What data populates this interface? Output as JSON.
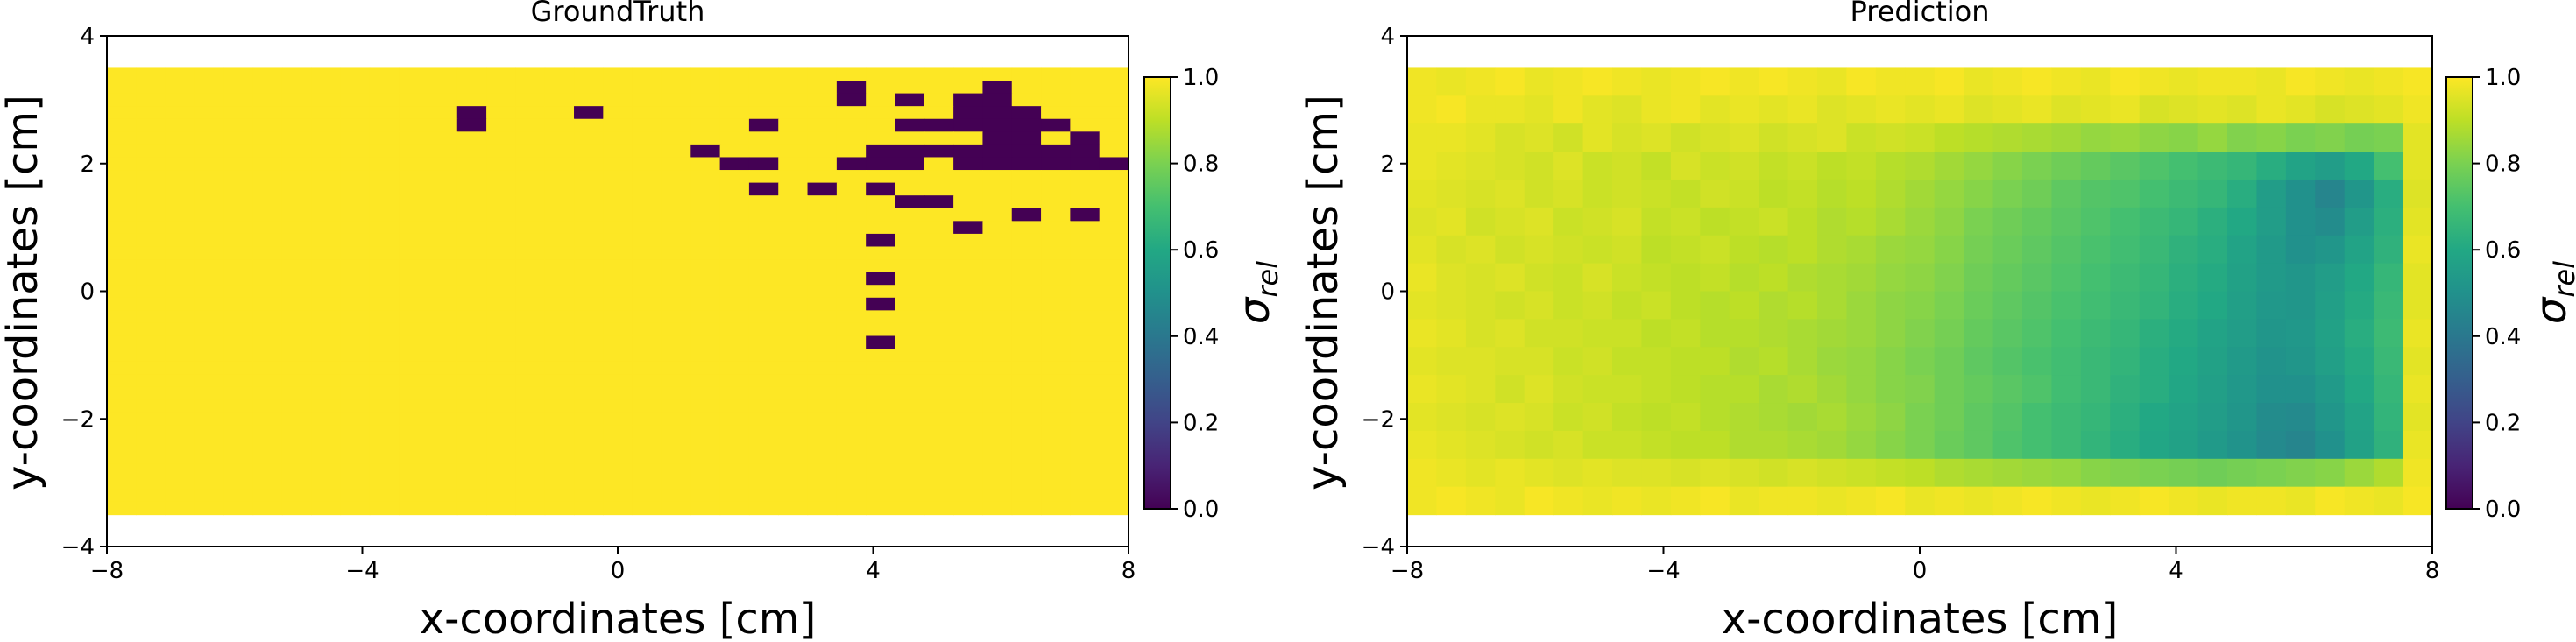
{
  "colors": {
    "viridis_low": "#440154",
    "viridis_high": "#fde725"
  },
  "chart_data": [
    {
      "type": "heatmap",
      "title": "GroundTruth",
      "xlabel": "x-coordinates [cm]",
      "ylabel": "y-coordinates [cm]",
      "xlim": [
        -8,
        8
      ],
      "ylim": [
        -4,
        4
      ],
      "xticks": [
        -8,
        -4,
        0,
        4,
        8
      ],
      "yticks": [
        -4,
        -2,
        0,
        2,
        4
      ],
      "xtick_labels": [
        "−8",
        "−4",
        "0",
        "4",
        "8"
      ],
      "ytick_labels": [
        "−4",
        "−2",
        "0",
        "2",
        "4"
      ],
      "colorbar": {
        "label": "σ",
        "label_sub": "rel",
        "range": [
          0.0,
          1.0
        ],
        "ticks": [
          0.0,
          0.2,
          0.4,
          0.6,
          0.8,
          1.0
        ],
        "tick_labels": [
          "0.0",
          "0.2",
          "0.4",
          "0.6",
          "0.8",
          "1.0"
        ],
        "colormap": "viridis"
      },
      "grid": {
        "x_min": -8.0,
        "x_max": 8.0,
        "y_min": -3.5,
        "y_max": 3.5,
        "row_order": "top-to-bottom"
      },
      "cells": [
        "11111111111111111111111111111111111",
        "11111111111111111111111110111101111",
        "11111111111111111111111110101001111",
        "11111111111101110111111111111000111",
        "11111111111101111111110111100000011",
        "11111111111111111111111111111100101",
        "11111111111111111111011111000000001",
        "11111111111111111111100110001000000",
        "11111111111111111111111111111111111",
        "11111111111111111111110101011111111",
        "11111111111111111111111111100111111",
        "11111111111111111111111111111110101",
        "11111111111111111111111111111011111",
        "11111111111111111111111111011111111",
        "11111111111111111111111111111111111",
        "11111111111111111111111111111111111",
        "11111111111111111111111111011111111",
        "11111111111111111111111111111111111",
        "11111111111111111111111111011111111",
        "11111111111111111111111111111111111",
        "11111111111111111111111111111111111",
        "11111111111111111111111111011111111",
        "11111111111111111111111111111111111",
        "11111111111111111111111111111111111",
        "11111111111111111111111111111111111",
        "11111111111111111111111111111111111",
        "11111111111111111111111111111111111",
        "11111111111111111111111111111111111",
        "11111111111111111111111111111111111",
        "11111111111111111111111111111111111",
        "11111111111111111111111111111111111",
        "11111111111111111111111111111111111",
        "11111111111111111111111111111111111",
        "11111111111111111111111111111111111",
        "11111111111111111111111111111111111"
      ]
    },
    {
      "type": "heatmap",
      "title": "Prediction",
      "xlabel": "x-coordinates [cm]",
      "ylabel": "y-coordinates [cm]",
      "xlim": [
        -8,
        8
      ],
      "ylim": [
        -4,
        4
      ],
      "xticks": [
        -8,
        -4,
        0,
        4,
        8
      ],
      "yticks": [
        -4,
        -2,
        0,
        2,
        4
      ],
      "xtick_labels": [
        "−8",
        "−4",
        "0",
        "4",
        "8"
      ],
      "ytick_labels": [
        "−4",
        "−2",
        "0",
        "2",
        "4"
      ],
      "colorbar": {
        "label": "σ",
        "label_sub": "rel",
        "range": [
          0.0,
          1.0
        ],
        "ticks": [
          0.0,
          0.2,
          0.4,
          0.6,
          0.8,
          1.0
        ],
        "tick_labels": [
          "0.0",
          "0.2",
          "0.4",
          "0.6",
          "0.8",
          "1.0"
        ],
        "colormap": "viridis"
      },
      "grid": {
        "x_min": -8.0,
        "x_max": 8.0,
        "y_min": -3.5,
        "y_max": 3.5,
        "row_order": "top-to-bottom"
      },
      "cells": [
        [
          0.98,
          0.97,
          0.98,
          0.99,
          0.97,
          0.98,
          0.99,
          0.98,
          0.97,
          0.98,
          0.99,
          0.98,
          0.99,
          0.98,
          0.97,
          0.99,
          0.98,
          0.98,
          0.99,
          0.97,
          0.98,
          0.99,
          0.98,
          0.97,
          0.99,
          0.98,
          0.97,
          0.98,
          0.98,
          0.97,
          0.99,
          0.98,
          0.97,
          0.98,
          0.99
        ],
        [
          0.98,
          0.99,
          0.97,
          0.97,
          0.96,
          0.98,
          0.96,
          0.95,
          0.97,
          0.98,
          0.96,
          0.97,
          0.96,
          0.97,
          0.95,
          0.96,
          0.97,
          0.96,
          0.97,
          0.95,
          0.96,
          0.97,
          0.95,
          0.96,
          0.97,
          0.94,
          0.95,
          0.96,
          0.95,
          0.97,
          0.96,
          0.94,
          0.95,
          0.96,
          0.98
        ],
        [
          0.97,
          0.97,
          0.96,
          0.94,
          0.95,
          0.93,
          0.96,
          0.94,
          0.95,
          0.93,
          0.94,
          0.95,
          0.93,
          0.94,
          0.95,
          0.92,
          0.93,
          0.92,
          0.9,
          0.89,
          0.88,
          0.87,
          0.86,
          0.84,
          0.85,
          0.83,
          0.82,
          0.84,
          0.81,
          0.82,
          0.8,
          0.81,
          0.79,
          0.8,
          0.96
        ],
        [
          0.97,
          0.96,
          0.95,
          0.94,
          0.93,
          0.95,
          0.92,
          0.93,
          0.91,
          0.94,
          0.92,
          0.93,
          0.91,
          0.92,
          0.9,
          0.91,
          0.89,
          0.88,
          0.86,
          0.84,
          0.82,
          0.8,
          0.78,
          0.76,
          0.74,
          0.72,
          0.7,
          0.68,
          0.66,
          0.62,
          0.58,
          0.55,
          0.6,
          0.7,
          0.96
        ],
        [
          0.96,
          0.95,
          0.94,
          0.95,
          0.93,
          0.94,
          0.92,
          0.93,
          0.92,
          0.91,
          0.93,
          0.92,
          0.9,
          0.91,
          0.89,
          0.9,
          0.88,
          0.86,
          0.84,
          0.82,
          0.8,
          0.78,
          0.75,
          0.73,
          0.72,
          0.7,
          0.68,
          0.66,
          0.62,
          0.55,
          0.5,
          0.45,
          0.52,
          0.62,
          0.95
        ],
        [
          0.95,
          0.96,
          0.93,
          0.94,
          0.95,
          0.92,
          0.93,
          0.94,
          0.91,
          0.92,
          0.9,
          0.91,
          0.92,
          0.9,
          0.88,
          0.89,
          0.87,
          0.85,
          0.83,
          0.8,
          0.78,
          0.76,
          0.74,
          0.72,
          0.7,
          0.68,
          0.66,
          0.63,
          0.6,
          0.55,
          0.5,
          0.48,
          0.55,
          0.63,
          0.96
        ],
        [
          0.96,
          0.94,
          0.95,
          0.93,
          0.94,
          0.93,
          0.92,
          0.93,
          0.9,
          0.91,
          0.92,
          0.9,
          0.89,
          0.9,
          0.88,
          0.87,
          0.85,
          0.84,
          0.82,
          0.79,
          0.77,
          0.75,
          0.73,
          0.71,
          0.69,
          0.67,
          0.64,
          0.62,
          0.58,
          0.54,
          0.5,
          0.52,
          0.58,
          0.64,
          0.97
        ],
        [
          0.97,
          0.95,
          0.94,
          0.95,
          0.93,
          0.92,
          0.94,
          0.92,
          0.91,
          0.9,
          0.91,
          0.89,
          0.9,
          0.88,
          0.87,
          0.86,
          0.84,
          0.83,
          0.81,
          0.78,
          0.76,
          0.74,
          0.72,
          0.7,
          0.68,
          0.66,
          0.63,
          0.61,
          0.57,
          0.54,
          0.52,
          0.55,
          0.6,
          0.66,
          0.96
        ],
        [
          0.96,
          0.95,
          0.94,
          0.93,
          0.94,
          0.92,
          0.93,
          0.91,
          0.92,
          0.9,
          0.89,
          0.9,
          0.88,
          0.89,
          0.87,
          0.85,
          0.83,
          0.82,
          0.8,
          0.77,
          0.75,
          0.73,
          0.71,
          0.69,
          0.67,
          0.65,
          0.62,
          0.6,
          0.56,
          0.53,
          0.52,
          0.56,
          0.61,
          0.67,
          0.96
        ],
        [
          0.97,
          0.96,
          0.94,
          0.95,
          0.93,
          0.93,
          0.92,
          0.92,
          0.9,
          0.91,
          0.89,
          0.89,
          0.88,
          0.87,
          0.86,
          0.85,
          0.83,
          0.81,
          0.79,
          0.76,
          0.74,
          0.72,
          0.7,
          0.68,
          0.66,
          0.63,
          0.61,
          0.58,
          0.55,
          0.52,
          0.53,
          0.57,
          0.62,
          0.68,
          0.97
        ],
        [
          0.96,
          0.95,
          0.95,
          0.94,
          0.94,
          0.92,
          0.93,
          0.91,
          0.91,
          0.9,
          0.9,
          0.88,
          0.89,
          0.87,
          0.85,
          0.84,
          0.82,
          0.8,
          0.78,
          0.75,
          0.73,
          0.71,
          0.69,
          0.67,
          0.65,
          0.62,
          0.6,
          0.57,
          0.54,
          0.51,
          0.52,
          0.56,
          0.61,
          0.67,
          0.96
        ],
        [
          0.97,
          0.96,
          0.95,
          0.93,
          0.95,
          0.93,
          0.92,
          0.92,
          0.91,
          0.9,
          0.89,
          0.89,
          0.87,
          0.88,
          0.86,
          0.84,
          0.82,
          0.81,
          0.78,
          0.76,
          0.74,
          0.72,
          0.69,
          0.67,
          0.64,
          0.62,
          0.59,
          0.56,
          0.53,
          0.5,
          0.5,
          0.54,
          0.6,
          0.66,
          0.97
        ],
        [
          0.96,
          0.95,
          0.94,
          0.95,
          0.94,
          0.92,
          0.93,
          0.91,
          0.9,
          0.91,
          0.89,
          0.88,
          0.87,
          0.86,
          0.87,
          0.85,
          0.83,
          0.8,
          0.78,
          0.75,
          0.73,
          0.7,
          0.68,
          0.66,
          0.63,
          0.6,
          0.58,
          0.55,
          0.52,
          0.48,
          0.47,
          0.52,
          0.58,
          0.65,
          0.96
        ],
        [
          0.97,
          0.96,
          0.95,
          0.94,
          0.93,
          0.94,
          0.92,
          0.92,
          0.91,
          0.9,
          0.9,
          0.88,
          0.88,
          0.87,
          0.86,
          0.84,
          0.82,
          0.8,
          0.77,
          0.75,
          0.72,
          0.7,
          0.68,
          0.65,
          0.62,
          0.59,
          0.57,
          0.54,
          0.51,
          0.47,
          0.45,
          0.5,
          0.57,
          0.64,
          0.97
        ],
        [
          0.98,
          0.97,
          0.96,
          0.97,
          0.96,
          0.95,
          0.96,
          0.95,
          0.95,
          0.94,
          0.95,
          0.94,
          0.93,
          0.94,
          0.93,
          0.92,
          0.91,
          0.9,
          0.88,
          0.87,
          0.86,
          0.85,
          0.84,
          0.82,
          0.81,
          0.8,
          0.79,
          0.78,
          0.79,
          0.8,
          0.81,
          0.82,
          0.85,
          0.88,
          0.98
        ],
        [
          0.98,
          0.99,
          0.98,
          0.97,
          0.99,
          0.98,
          0.97,
          0.98,
          0.97,
          0.98,
          0.99,
          0.97,
          0.98,
          0.98,
          0.97,
          0.98,
          0.99,
          0.97,
          0.98,
          0.97,
          0.98,
          0.99,
          0.98,
          0.97,
          0.98,
          0.99,
          0.98,
          0.97,
          0.98,
          0.98,
          0.97,
          0.99,
          0.98,
          0.97,
          0.99
        ]
      ]
    }
  ]
}
